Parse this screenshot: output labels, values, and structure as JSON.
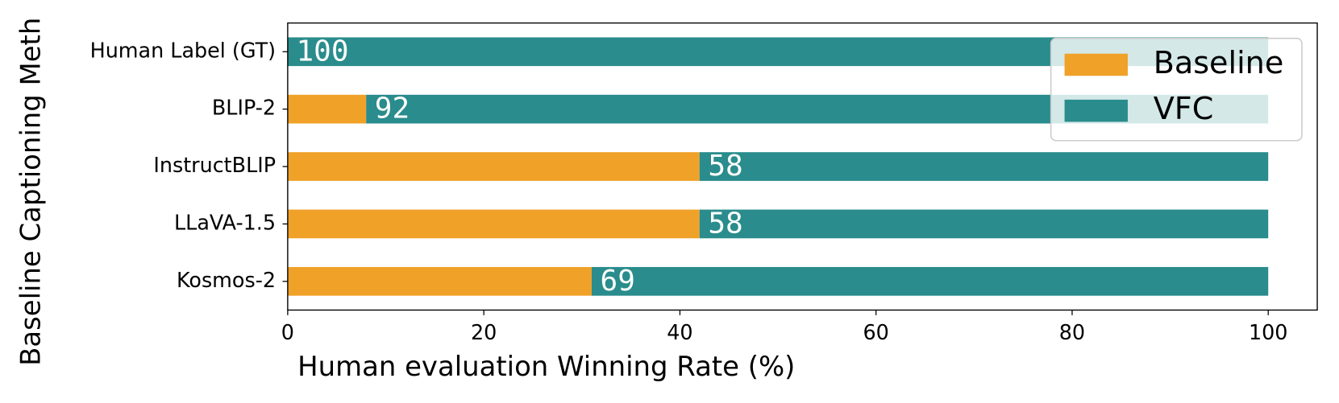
{
  "chart_data": {
    "type": "stacked_barh",
    "categories": [
      "Human Label (GT)",
      "BLIP-2",
      "InstructBLIP",
      "LLaVA-1.5",
      "Kosmos-2"
    ],
    "series": [
      {
        "name": "Baseline",
        "color": "#f0a128",
        "values": [
          0,
          8,
          42,
          42,
          31
        ]
      },
      {
        "name": "VFC",
        "color": "#2a8c8c",
        "values": [
          100,
          92,
          58,
          58,
          69
        ]
      }
    ],
    "data_labels_series": 1,
    "xlabel": "Human evaluation Winning Rate (%)",
    "ylabel": "Baseline Captioning Meth",
    "xlim": [
      0,
      105
    ],
    "xticks": [
      0,
      20,
      40,
      60,
      80,
      100
    ],
    "legend": "upper right"
  }
}
